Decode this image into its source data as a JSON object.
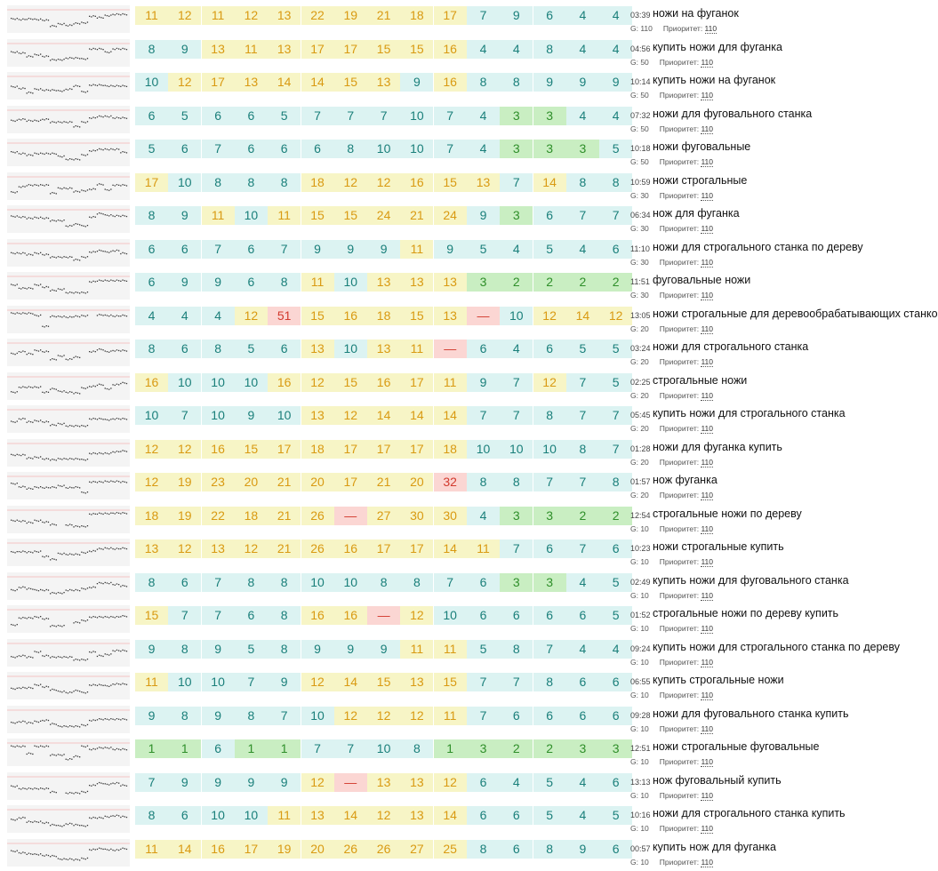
{
  "labels": {
    "g_prefix": "G:",
    "priority_label": "Приоритет:"
  },
  "colors": {
    "teal_bg": "#dcf3f2",
    "teal_fg": "#1a7f7a",
    "yellow_bg": "#f7f5c6",
    "yellow_fg": "#d99a12",
    "green_bg": "#c9eec2",
    "green_fg": "#2f8f2a",
    "red_bg": "#fbd6d3",
    "red_fg": "#d23a2e"
  },
  "rows": [
    {
      "keyword": "ножи на фуганок",
      "time": "03:39",
      "g": "110",
      "priority": "110",
      "positions": [
        "11",
        "12",
        "11",
        "12",
        "13",
        "22",
        "19",
        "21",
        "18",
        "17",
        "7",
        "9",
        "6",
        "4",
        "4"
      ]
    },
    {
      "keyword": "купить ножи для фуганка",
      "time": "04:56",
      "g": "50",
      "priority": "110",
      "positions": [
        "8",
        "9",
        "13",
        "11",
        "13",
        "17",
        "17",
        "15",
        "15",
        "16",
        "4",
        "4",
        "8",
        "4",
        "4"
      ]
    },
    {
      "keyword": "купить ножи на фуганок",
      "time": "10:14",
      "g": "50",
      "priority": "110",
      "positions": [
        "10",
        "12",
        "17",
        "13",
        "14",
        "14",
        "15",
        "13",
        "9",
        "16",
        "8",
        "8",
        "9",
        "9",
        "9"
      ]
    },
    {
      "keyword": "ножи для фуговального станка",
      "time": "07:32",
      "g": "50",
      "priority": "110",
      "positions": [
        "6",
        "5",
        "6",
        "6",
        "5",
        "7",
        "7",
        "7",
        "10",
        "7",
        "4",
        "3",
        "3",
        "4",
        "4"
      ]
    },
    {
      "keyword": "ножи фуговальные",
      "time": "10:18",
      "g": "50",
      "priority": "110",
      "positions": [
        "5",
        "6",
        "7",
        "6",
        "6",
        "6",
        "8",
        "10",
        "10",
        "7",
        "4",
        "3",
        "3",
        "3",
        "5"
      ]
    },
    {
      "keyword": "ножи строгальные",
      "time": "10:59",
      "g": "30",
      "priority": "110",
      "positions": [
        "17",
        "10",
        "8",
        "8",
        "8",
        "18",
        "12",
        "12",
        "16",
        "15",
        "13",
        "7",
        "14",
        "8",
        "8"
      ]
    },
    {
      "keyword": "нож для фуганка",
      "time": "06:34",
      "g": "30",
      "priority": "110",
      "positions": [
        "8",
        "9",
        "11",
        "10",
        "11",
        "15",
        "15",
        "24",
        "21",
        "24",
        "9",
        "3",
        "6",
        "7",
        "7"
      ]
    },
    {
      "keyword": "ножи для строгального станка по дереву",
      "time": "11:10",
      "g": "30",
      "priority": "110",
      "positions": [
        "6",
        "6",
        "7",
        "6",
        "7",
        "9",
        "9",
        "9",
        "11",
        "9",
        "5",
        "4",
        "5",
        "4",
        "6"
      ]
    },
    {
      "keyword": "фуговальные ножи",
      "time": "11:51",
      "g": "30",
      "priority": "110",
      "positions": [
        "6",
        "9",
        "9",
        "6",
        "8",
        "11",
        "10",
        "13",
        "13",
        "13",
        "3",
        "2",
        "2",
        "2",
        "2"
      ]
    },
    {
      "keyword": "ножи строгальные для деревообрабатывающих станков",
      "time": "13:05",
      "g": "20",
      "priority": "110",
      "positions": [
        "4",
        "4",
        "4",
        "12",
        "51",
        "15",
        "16",
        "18",
        "15",
        "13",
        "—",
        "10",
        "12",
        "14",
        "12"
      ]
    },
    {
      "keyword": "ножи для строгального станка",
      "time": "03:24",
      "g": "20",
      "priority": "110",
      "positions": [
        "8",
        "6",
        "8",
        "5",
        "6",
        "13",
        "10",
        "13",
        "11",
        "—",
        "6",
        "4",
        "6",
        "5",
        "5"
      ]
    },
    {
      "keyword": "строгальные ножи",
      "time": "02:25",
      "g": "20",
      "priority": "110",
      "positions": [
        "16",
        "10",
        "10",
        "10",
        "16",
        "12",
        "15",
        "16",
        "17",
        "11",
        "9",
        "7",
        "12",
        "7",
        "5"
      ]
    },
    {
      "keyword": "купить ножи для строгального станка",
      "time": "05:45",
      "g": "20",
      "priority": "110",
      "positions": [
        "10",
        "7",
        "10",
        "9",
        "10",
        "13",
        "12",
        "14",
        "14",
        "14",
        "7",
        "7",
        "8",
        "7",
        "7"
      ]
    },
    {
      "keyword": "ножи для фуганка купить",
      "time": "01:28",
      "g": "20",
      "priority": "110",
      "positions": [
        "12",
        "12",
        "16",
        "15",
        "17",
        "18",
        "17",
        "17",
        "17",
        "18",
        "10",
        "10",
        "10",
        "8",
        "7"
      ]
    },
    {
      "keyword": "нож фуганка",
      "time": "01:57",
      "g": "20",
      "priority": "110",
      "positions": [
        "12",
        "19",
        "23",
        "20",
        "21",
        "20",
        "17",
        "21",
        "20",
        "32",
        "8",
        "8",
        "7",
        "7",
        "8"
      ]
    },
    {
      "keyword": "строгальные ножи по дереву",
      "time": "12:54",
      "g": "10",
      "priority": "110",
      "positions": [
        "18",
        "19",
        "22",
        "18",
        "21",
        "26",
        "—",
        "27",
        "30",
        "30",
        "4",
        "3",
        "3",
        "2",
        "2"
      ]
    },
    {
      "keyword": "ножи строгальные купить",
      "time": "10:23",
      "g": "10",
      "priority": "110",
      "positions": [
        "13",
        "12",
        "13",
        "12",
        "21",
        "26",
        "16",
        "17",
        "17",
        "14",
        "11",
        "7",
        "6",
        "7",
        "6"
      ]
    },
    {
      "keyword": "купить ножи для фуговального станка",
      "time": "02:49",
      "g": "10",
      "priority": "110",
      "positions": [
        "8",
        "6",
        "7",
        "8",
        "8",
        "10",
        "10",
        "8",
        "8",
        "7",
        "6",
        "3",
        "3",
        "4",
        "5"
      ]
    },
    {
      "keyword": "строгальные ножи по дереву купить",
      "time": "01:52",
      "g": "10",
      "priority": "110",
      "positions": [
        "15",
        "7",
        "7",
        "6",
        "8",
        "16",
        "16",
        "—",
        "12",
        "10",
        "6",
        "6",
        "6",
        "6",
        "5"
      ]
    },
    {
      "keyword": "купить ножи для строгального станка по дереву",
      "time": "09:24",
      "g": "10",
      "priority": "110",
      "positions": [
        "9",
        "8",
        "9",
        "5",
        "8",
        "9",
        "9",
        "9",
        "11",
        "11",
        "5",
        "8",
        "7",
        "4",
        "4"
      ]
    },
    {
      "keyword": "купить строгальные ножи",
      "time": "06:55",
      "g": "10",
      "priority": "110",
      "positions": [
        "11",
        "10",
        "10",
        "7",
        "9",
        "12",
        "14",
        "15",
        "13",
        "15",
        "7",
        "7",
        "8",
        "6",
        "6"
      ]
    },
    {
      "keyword": "ножи для фуговального станка купить",
      "time": "09:28",
      "g": "10",
      "priority": "110",
      "positions": [
        "9",
        "8",
        "9",
        "8",
        "7",
        "10",
        "12",
        "12",
        "12",
        "11",
        "7",
        "6",
        "6",
        "6",
        "6"
      ]
    },
    {
      "keyword": "ножи строгальные фуговальные",
      "time": "12:51",
      "g": "10",
      "priority": "110",
      "positions": [
        "1",
        "1",
        "6",
        "1",
        "1",
        "7",
        "7",
        "10",
        "8",
        "1",
        "3",
        "2",
        "2",
        "3",
        "3"
      ]
    },
    {
      "keyword": "нож фуговальный купить",
      "time": "13:13",
      "g": "10",
      "priority": "110",
      "positions": [
        "7",
        "9",
        "9",
        "9",
        "9",
        "12",
        "—",
        "13",
        "13",
        "12",
        "6",
        "4",
        "5",
        "4",
        "6"
      ]
    },
    {
      "keyword": "ножи для строгального станка купить",
      "time": "10:16",
      "g": "10",
      "priority": "110",
      "positions": [
        "8",
        "6",
        "10",
        "10",
        "11",
        "13",
        "14",
        "12",
        "13",
        "14",
        "6",
        "6",
        "5",
        "4",
        "5"
      ]
    },
    {
      "keyword": "купить нож для фуганка",
      "time": "00:57",
      "g": "10",
      "priority": "110",
      "positions": [
        "11",
        "14",
        "16",
        "17",
        "19",
        "20",
        "26",
        "26",
        "27",
        "25",
        "8",
        "6",
        "8",
        "9",
        "6"
      ]
    }
  ]
}
